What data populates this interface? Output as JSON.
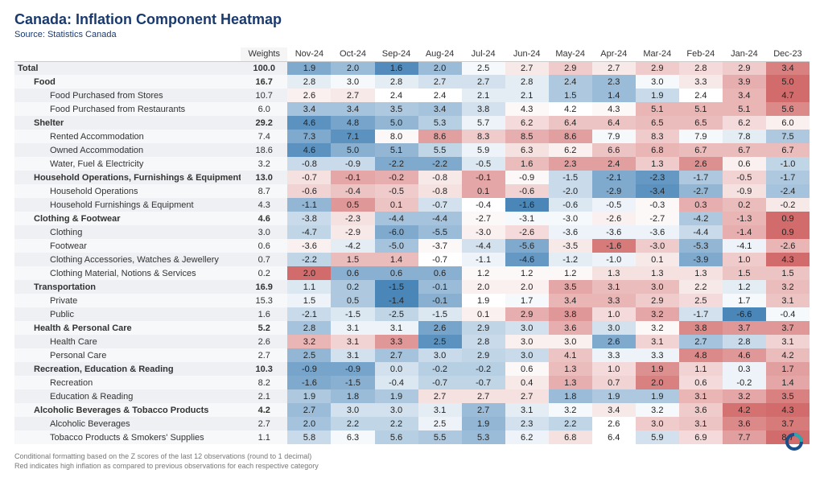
{
  "title": "Canada: Inflation Component Heatmap",
  "subtitle": "Source: Statistics Canada",
  "columns": {
    "weights_label": "Weights",
    "months": [
      "Nov-24",
      "Oct-24",
      "Sep-24",
      "Aug-24",
      "Jul-24",
      "Jun-24",
      "May-24",
      "Apr-24",
      "Mar-24",
      "Feb-24",
      "Jan-24",
      "Dec-23"
    ]
  },
  "color_scale": {
    "comment": "diverging red-white-blue; value is z-score of last 12 obs rounded to 1 dec, red=high inflation, blue=low",
    "red": "#d26b6b",
    "mid": "#ffffff",
    "blue": "#4a86b8"
  },
  "rows": [
    {
      "label": "Total",
      "indent": 0,
      "bold": true,
      "weight": "100.0",
      "values": [
        1.9,
        2.0,
        1.6,
        2.0,
        2.5,
        2.7,
        2.9,
        2.7,
        2.9,
        2.8,
        2.9,
        3.4
      ],
      "z": [
        -1.4,
        -1.1,
        -1.9,
        -1.1,
        -0.1,
        0.3,
        0.7,
        0.3,
        0.7,
        0.5,
        0.7,
        1.7
      ]
    },
    {
      "label": "Food",
      "indent": 1,
      "bold": true,
      "weight": "16.7",
      "values": [
        2.8,
        3.0,
        2.8,
        2.7,
        2.7,
        2.8,
        2.4,
        2.3,
        3.0,
        3.3,
        3.9,
        5.0
      ],
      "z": [
        -0.3,
        -0.1,
        -0.3,
        -0.5,
        -0.5,
        -0.3,
        -0.9,
        -1.1,
        -0.1,
        0.3,
        1.1,
        2.6
      ]
    },
    {
      "label": "Food Purchased from Stores",
      "indent": 2,
      "weight": "10.7",
      "values": [
        2.6,
        2.7,
        2.4,
        2.4,
        2.1,
        2.1,
        1.5,
        1.4,
        1.9,
        2.4,
        3.4,
        4.7
      ],
      "z": [
        0.2,
        0.3,
        0.0,
        0.0,
        -0.3,
        -0.3,
        -0.9,
        -1.1,
        -0.6,
        0.0,
        1.0,
        2.3
      ]
    },
    {
      "label": "Food Purchased from Restaurants",
      "indent": 2,
      "weight": "6.0",
      "values": [
        3.4,
        3.4,
        3.5,
        3.4,
        3.8,
        4.3,
        4.2,
        4.3,
        5.1,
        5.1,
        5.1,
        5.6
      ],
      "z": [
        -1.0,
        -1.0,
        -0.9,
        -1.0,
        -0.5,
        0.1,
        0.0,
        0.1,
        1.0,
        1.0,
        1.0,
        1.6
      ]
    },
    {
      "label": "Shelter",
      "indent": 1,
      "bold": true,
      "weight": "29.2",
      "values": [
        4.6,
        4.8,
        5.0,
        5.3,
        5.7,
        6.2,
        6.4,
        6.4,
        6.5,
        6.5,
        6.2,
        6.0
      ],
      "z": [
        -1.8,
        -1.5,
        -1.2,
        -0.8,
        -0.2,
        0.5,
        0.8,
        0.8,
        0.9,
        0.9,
        0.5,
        0.2
      ]
    },
    {
      "label": "Rented Accommodation",
      "indent": 2,
      "weight": "7.4",
      "values": [
        7.3,
        7.1,
        8.0,
        8.6,
        8.3,
        8.5,
        8.6,
        7.9,
        8.3,
        7.9,
        7.8,
        7.5
      ],
      "z": [
        -1.4,
        -1.8,
        0.1,
        1.3,
        0.7,
        1.1,
        1.3,
        -0.1,
        0.7,
        -0.1,
        -0.3,
        -0.9
      ]
    },
    {
      "label": "Owned Accommodation",
      "indent": 2,
      "weight": "18.6",
      "values": [
        4.6,
        5.0,
        5.1,
        5.5,
        5.9,
        6.3,
        6.2,
        6.6,
        6.8,
        6.7,
        6.7,
        6.7
      ],
      "z": [
        -1.8,
        -1.3,
        -1.2,
        -0.7,
        -0.2,
        0.4,
        0.2,
        0.8,
        1.0,
        0.9,
        0.9,
        0.9
      ]
    },
    {
      "label": "Water, Fuel & Electricity",
      "indent": 2,
      "weight": "3.2",
      "values": [
        -0.8,
        -0.9,
        -2.2,
        -2.2,
        -0.5,
        1.6,
        2.3,
        2.4,
        1.3,
        2.6,
        0.6,
        -1.0
      ],
      "z": [
        -0.6,
        -0.6,
        -1.4,
        -1.4,
        -0.4,
        0.9,
        1.3,
        1.3,
        0.7,
        1.5,
        0.2,
        -0.7
      ]
    },
    {
      "label": "Household Operations, Furnishings & Equipment",
      "indent": 1,
      "bold": true,
      "weight": "13.0",
      "values": [
        -0.7,
        -0.1,
        -0.2,
        -0.8,
        -0.1,
        -0.9,
        -1.5,
        -2.1,
        -2.3,
        -1.7,
        -0.5,
        -1.7
      ],
      "z": [
        0.4,
        1.2,
        1.1,
        0.3,
        1.2,
        0.1,
        -0.6,
        -1.4,
        -1.7,
        -0.9,
        0.6,
        -0.9
      ]
    },
    {
      "label": "Household Operations",
      "indent": 2,
      "weight": "8.7",
      "values": [
        -0.6,
        -0.4,
        -0.5,
        -0.8,
        0.1,
        -0.6,
        -2.0,
        -2.9,
        -3.4,
        -2.7,
        -0.9,
        -2.4
      ],
      "z": [
        0.6,
        0.8,
        0.7,
        0.4,
        1.2,
        0.6,
        -0.6,
        -1.4,
        -1.8,
        -1.2,
        0.4,
        -1.0
      ]
    },
    {
      "label": "Household Furnishings & Equipment",
      "indent": 2,
      "weight": "4.3",
      "values": [
        -1.1,
        0.5,
        0.1,
        -0.7,
        -0.4,
        -1.6,
        -0.6,
        -0.5,
        -0.3,
        0.3,
        0.2,
        -0.2
      ],
      "z": [
        -1.2,
        1.4,
        0.8,
        -0.5,
        0.0,
        -2.0,
        -0.4,
        -0.2,
        0.1,
        1.1,
        0.9,
        0.3
      ]
    },
    {
      "label": "Clothing & Footwear",
      "indent": 1,
      "bold": true,
      "weight": "4.6",
      "values": [
        -3.8,
        -2.3,
        -4.4,
        -4.4,
        -2.7,
        -3.1,
        -3.0,
        -2.6,
        -2.7,
        -4.2,
        -1.3,
        0.9
      ],
      "z": [
        -0.6,
        0.4,
        -1.0,
        -1.0,
        0.1,
        -0.1,
        -0.1,
        0.2,
        0.1,
        -0.9,
        1.0,
        2.5
      ]
    },
    {
      "label": "Clothing",
      "indent": 2,
      "weight": "3.0",
      "values": [
        -4.7,
        -2.9,
        -6.0,
        -5.5,
        -3.0,
        -2.6,
        -3.6,
        -3.6,
        -3.6,
        -4.4,
        -1.4,
        0.9
      ],
      "z": [
        -0.7,
        0.3,
        -1.4,
        -1.1,
        0.2,
        0.5,
        -0.2,
        -0.2,
        -0.2,
        -0.6,
        1.1,
        2.4
      ]
    },
    {
      "label": "Footwear",
      "indent": 2,
      "weight": "0.6",
      "values": [
        -3.6,
        -4.2,
        -5.0,
        -3.7,
        -4.4,
        -5.6,
        -3.5,
        -1.6,
        -3.0,
        -5.3,
        -4.1,
        -2.6
      ],
      "z": [
        0.2,
        -0.3,
        -1.0,
        0.1,
        -0.5,
        -1.4,
        0.3,
        1.8,
        0.7,
        -1.2,
        -0.2,
        1.0
      ]
    },
    {
      "label": "Clothing Accessories, Watches & Jewellery",
      "indent": 2,
      "weight": "0.7",
      "values": [
        -2.2,
        1.5,
        1.4,
        -0.7,
        -1.1,
        -4.6,
        -1.2,
        -1.0,
        0.1,
        -3.9,
        1.0,
        4.3
      ],
      "z": [
        -0.7,
        0.9,
        0.9,
        0.0,
        -0.2,
        -1.7,
        -0.3,
        -0.2,
        0.3,
        -1.4,
        0.7,
        2.1
      ]
    },
    {
      "label": "Clothing Material, Notions & Services",
      "indent": 2,
      "weight": "0.2",
      "values": [
        2.0,
        0.6,
        0.6,
        0.6,
        1.2,
        1.2,
        1.2,
        1.3,
        1.3,
        1.3,
        1.5,
        1.5
      ],
      "z": [
        2.0,
        -1.3,
        -1.3,
        -1.3,
        0.1,
        0.1,
        0.1,
        0.4,
        0.4,
        0.4,
        0.8,
        0.8
      ]
    },
    {
      "label": "Transportation",
      "indent": 1,
      "bold": true,
      "weight": "16.9",
      "values": [
        1.1,
        0.2,
        -1.5,
        -0.1,
        2.0,
        2.0,
        3.5,
        3.1,
        3.0,
        2.2,
        1.2,
        3.2
      ],
      "z": [
        -0.4,
        -0.9,
        -2.0,
        -1.1,
        0.2,
        0.2,
        1.2,
        0.9,
        0.9,
        0.3,
        -0.3,
        0.9
      ]
    },
    {
      "label": "Private",
      "indent": 2,
      "weight": "15.3",
      "values": [
        1.5,
        0.5,
        -1.4,
        -0.1,
        1.9,
        1.7,
        3.4,
        3.3,
        2.9,
        2.5,
        1.7,
        3.1
      ],
      "z": [
        -0.2,
        -0.9,
        -2.1,
        -1.3,
        0.0,
        -0.1,
        1.0,
        1.0,
        0.7,
        0.5,
        -0.1,
        0.8
      ]
    },
    {
      "label": "Public",
      "indent": 2,
      "weight": "1.6",
      "values": [
        -2.1,
        -1.5,
        -2.5,
        -1.5,
        0.1,
        2.9,
        3.8,
        1.0,
        3.2,
        -1.7,
        -6.6,
        -0.4
      ],
      "z": [
        -0.6,
        -0.4,
        -0.7,
        -0.4,
        0.2,
        1.1,
        1.4,
        0.5,
        1.2,
        -0.5,
        -2.1,
        -0.1
      ]
    },
    {
      "label": "Health & Personal Care",
      "indent": 1,
      "bold": true,
      "weight": "5.2",
      "values": [
        2.8,
        3.1,
        3.1,
        2.6,
        2.9,
        3.0,
        3.6,
        3.0,
        3.2,
        3.8,
        3.7,
        3.7
      ],
      "z": [
        -1.0,
        -0.2,
        -0.2,
        -1.5,
        -0.7,
        -0.5,
        1.1,
        -0.5,
        0.1,
        1.6,
        1.4,
        1.4
      ]
    },
    {
      "label": "Health Care",
      "indent": 2,
      "weight": "2.6",
      "values": [
        3.2,
        3.1,
        3.3,
        2.5,
        2.8,
        3.0,
        3.0,
        2.6,
        3.1,
        2.7,
        2.8,
        3.1
      ],
      "z": [
        1.0,
        0.6,
        1.4,
        -1.8,
        -0.6,
        0.2,
        0.2,
        -1.4,
        0.6,
        -1.0,
        -0.6,
        0.6
      ]
    },
    {
      "label": "Personal Care",
      "indent": 2,
      "weight": "2.7",
      "values": [
        2.5,
        3.1,
        2.7,
        3.0,
        2.9,
        3.0,
        4.1,
        3.3,
        3.3,
        4.8,
        4.6,
        4.2
      ],
      "z": [
        -1.2,
        -0.5,
        -1.0,
        -0.6,
        -0.7,
        -0.6,
        0.8,
        -0.2,
        -0.2,
        1.6,
        1.4,
        0.9
      ]
    },
    {
      "label": "Recreation, Education & Reading",
      "indent": 1,
      "bold": true,
      "weight": "10.3",
      "values": [
        -0.9,
        -0.9,
        0.0,
        -0.2,
        -0.2,
        0.6,
        1.3,
        1.0,
        1.9,
        1.1,
        0.3,
        1.7
      ],
      "z": [
        -1.5,
        -1.5,
        -0.5,
        -0.8,
        -0.8,
        0.1,
        0.9,
        0.5,
        1.5,
        0.6,
        -0.2,
        1.3
      ]
    },
    {
      "label": "Recreation",
      "indent": 2,
      "weight": "8.2",
      "values": [
        -1.6,
        -1.5,
        -0.4,
        -0.7,
        -0.7,
        0.4,
        1.3,
        0.7,
        2.0,
        0.6,
        -0.2,
        1.4
      ],
      "z": [
        -1.4,
        -1.3,
        -0.4,
        -0.7,
        -0.7,
        0.3,
        1.1,
        0.6,
        1.7,
        0.5,
        -0.2,
        1.2
      ]
    },
    {
      "label": "Education & Reading",
      "indent": 2,
      "weight": "2.1",
      "values": [
        1.9,
        1.8,
        1.9,
        2.7,
        2.7,
        2.7,
        1.8,
        1.9,
        1.9,
        3.1,
        3.2,
        3.5
      ],
      "z": [
        -0.9,
        -1.1,
        -0.9,
        0.4,
        0.4,
        0.4,
        -1.1,
        -0.9,
        -0.9,
        1.0,
        1.2,
        1.7
      ]
    },
    {
      "label": "Alcoholic Beverages & Tobacco Products",
      "indent": 1,
      "bold": true,
      "weight": "4.2",
      "values": [
        2.7,
        3.0,
        3.0,
        3.1,
        2.7,
        3.1,
        3.2,
        3.4,
        3.2,
        3.6,
        4.2,
        4.3
      ],
      "z": [
        -1.1,
        -0.5,
        -0.5,
        -0.3,
        -1.1,
        -0.3,
        -0.1,
        0.3,
        -0.1,
        0.7,
        1.9,
        2.1
      ]
    },
    {
      "label": "Alcoholic Beverages",
      "indent": 2,
      "weight": "2.7",
      "values": [
        2.0,
        2.2,
        2.2,
        2.5,
        1.9,
        2.3,
        2.2,
        2.6,
        3.0,
        3.1,
        3.6,
        3.7
      ],
      "z": [
        -1.0,
        -0.7,
        -0.7,
        -0.2,
        -1.2,
        -0.5,
        -0.7,
        0.0,
        0.7,
        0.8,
        1.6,
        1.8
      ]
    },
    {
      "label": "Tobacco Products & Smokers' Supplies",
      "indent": 2,
      "weight": "1.1",
      "values": [
        5.8,
        6.3,
        5.6,
        5.5,
        5.3,
        6.2,
        6.8,
        6.4,
        5.9,
        6.9,
        7.7,
        8.7
      ],
      "z": [
        -0.6,
        -0.1,
        -0.8,
        -0.9,
        -1.1,
        -0.2,
        0.4,
        0.0,
        -0.5,
        0.5,
        1.3,
        2.3
      ]
    }
  ],
  "footnotes": [
    "Conditional formatting based on the Z scores of the last 12 observations (round to 1 decimal)",
    "Red indicates high inflation as compared to previous observations for each respective category"
  ]
}
